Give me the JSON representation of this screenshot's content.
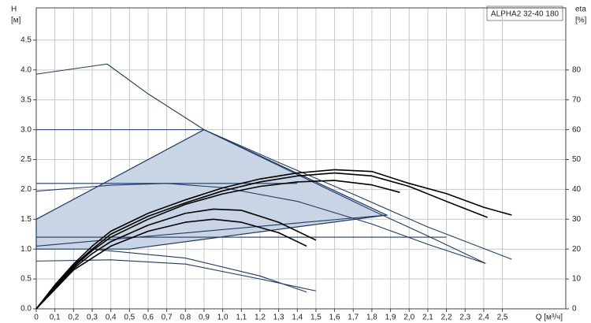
{
  "chart_data": {
    "type": "line",
    "title": "ALPHA2 32-40 180",
    "y_label": "H",
    "y_unit": "[м]",
    "y2_label": "eta",
    "y2_unit": "[%]",
    "x_label": "Q [м³/ч]",
    "grid": true,
    "xlim": [
      0,
      2.84
    ],
    "ylim": [
      0,
      5.04
    ],
    "y2lim": [
      0,
      100.8
    ],
    "xticks": [
      0,
      {
        "value": 0.1,
        "label": "0,1"
      },
      {
        "value": 0.2,
        "label": "0,2"
      },
      {
        "value": 0.3,
        "label": "0,3"
      },
      {
        "value": 0.4,
        "label": "0,4"
      },
      {
        "value": 0.5,
        "label": "0,5"
      },
      {
        "value": 0.6,
        "label": "0,6"
      },
      {
        "value": 0.7,
        "label": "0,7"
      },
      {
        "value": 0.8,
        "label": "0,8"
      },
      {
        "value": 0.9,
        "label": "0,9"
      },
      {
        "value": 1,
        "label": "1,0"
      },
      {
        "value": 1.1,
        "label": "1,1"
      },
      {
        "value": 1.2,
        "label": "1,2"
      },
      {
        "value": 1.3,
        "label": "1,3"
      },
      {
        "value": 1.4,
        "label": "1,4"
      },
      {
        "value": 1.5,
        "label": "1,5"
      },
      {
        "value": 1.6,
        "label": "1,6"
      },
      {
        "value": 1.7,
        "label": "1,7"
      },
      {
        "value": 1.8,
        "label": "1,8"
      },
      {
        "value": 1.9,
        "label": "1,9"
      },
      {
        "value": 2,
        "label": "2,0"
      },
      {
        "value": 2.1,
        "label": "2,1"
      },
      {
        "value": 2.2,
        "label": "2,2"
      },
      {
        "value": 2.3,
        "label": "2,3"
      },
      {
        "value": 2.4,
        "label": "2,4"
      },
      {
        "value": 2.5,
        "label": "2,5"
      }
    ],
    "yticks": [
      {
        "value": 0,
        "label": "0.0"
      },
      0.5,
      {
        "value": 1,
        "label": "1.0"
      },
      1.5,
      {
        "value": 2,
        "label": "2.0"
      },
      2.5,
      {
        "value": 3,
        "label": "3.0"
      },
      3.5,
      {
        "value": 4,
        "label": "4.0"
      },
      4.5
    ],
    "y2ticks": [
      0,
      10,
      20,
      30,
      40,
      50,
      60,
      70,
      80
    ],
    "series": [
      {
        "kind": "area",
        "color": "#1f3b64",
        "fill": "#c9d5e4",
        "x": [
          0,
          0.9,
          1.88,
          0.5,
          0
        ],
        "values": [
          1.5,
          3.0,
          1.57,
          1.0,
          1.0
        ]
      },
      {
        "color": "#1f3b64",
        "x": [
          0,
          0.38,
          0.6,
          0.9,
          1.2,
          1.5,
          1.8,
          2.1,
          2.41
        ],
        "values": [
          3.93,
          4.1,
          3.6,
          3.0,
          2.55,
          2.1,
          1.65,
          1.22,
          0.76
        ]
      },
      {
        "color": "#1f3b64",
        "x": [
          0,
          0.9,
          1.3,
          1.7,
          2.1,
          2.55
        ],
        "values": [
          3.0,
          3.0,
          2.45,
          1.92,
          1.37,
          0.83
        ]
      },
      {
        "color": "#1f3b64",
        "x": [
          0,
          1.4
        ],
        "values": [
          2.1,
          2.1
        ]
      },
      {
        "color": "#1f3b64",
        "x": [
          0,
          2.2
        ],
        "values": [
          1.2,
          1.2
        ]
      },
      {
        "color": "#1f3b64",
        "x": [
          0,
          1.88
        ],
        "values": [
          1.05,
          1.57
        ]
      },
      {
        "color": "#1f3b64",
        "x": [
          0,
          0.4,
          0.7,
          1.0,
          1.4,
          1.8,
          2.1,
          2.41
        ],
        "values": [
          1.97,
          2.07,
          2.1,
          2.03,
          1.8,
          1.42,
          1.08,
          0.76
        ]
      },
      {
        "color": "#1f3b64",
        "x": [
          0,
          0.4,
          0.8,
          1.2,
          1.5
        ],
        "values": [
          0.8,
          0.82,
          0.75,
          0.5,
          0.3
        ]
      },
      {
        "color": "#1f3b64",
        "x": [
          0.3,
          0.8,
          1.2,
          1.45
        ],
        "values": [
          1.0,
          0.85,
          0.55,
          0.28
        ]
      },
      {
        "color": "#000000",
        "axis": "y2",
        "x": [
          0,
          0.1,
          0.2,
          0.3,
          0.4,
          0.6,
          0.8,
          1.0,
          1.2,
          1.4,
          1.6,
          1.8,
          2.0,
          2.2,
          2.4,
          2.55
        ],
        "values": [
          0,
          8,
          15,
          21,
          26,
          32,
          36.5,
          40.5,
          43.5,
          45.5,
          46.6,
          46,
          42,
          38.6,
          34,
          31.4
        ]
      },
      {
        "color": "#000000",
        "axis": "y2",
        "x": [
          0,
          0.1,
          0.2,
          0.3,
          0.4,
          0.6,
          0.8,
          1.0,
          1.2,
          1.4,
          1.6,
          1.8,
          2.0,
          2.2,
          2.42
        ],
        "values": [
          0,
          7.5,
          14.5,
          20,
          25,
          31,
          35.5,
          39.5,
          42.5,
          44.5,
          45.5,
          44.5,
          41,
          36,
          30.6
        ]
      },
      {
        "color": "#000000",
        "axis": "y2",
        "x": [
          0,
          0.1,
          0.2,
          0.3,
          0.4,
          0.6,
          0.8,
          1.0,
          1.2,
          1.4,
          1.6,
          1.8,
          1.95
        ],
        "values": [
          0,
          7,
          14,
          19.5,
          24,
          30,
          35,
          38.5,
          41,
          42.5,
          43,
          41.5,
          39
        ]
      },
      {
        "color": "#000000",
        "axis": "y2",
        "x": [
          0,
          0.1,
          0.2,
          0.3,
          0.4,
          0.6,
          0.8,
          0.95,
          1.1,
          1.3,
          1.5
        ],
        "values": [
          0,
          7,
          13.5,
          18.5,
          22.5,
          28,
          32,
          33.4,
          33,
          29,
          23
        ]
      },
      {
        "color": "#000000",
        "axis": "y2",
        "x": [
          0,
          0.2,
          0.4,
          0.6,
          0.8,
          0.95,
          1.1,
          1.3,
          1.45
        ],
        "values": [
          0,
          13,
          21,
          26,
          29,
          30,
          29,
          25.5,
          21
        ]
      }
    ]
  }
}
